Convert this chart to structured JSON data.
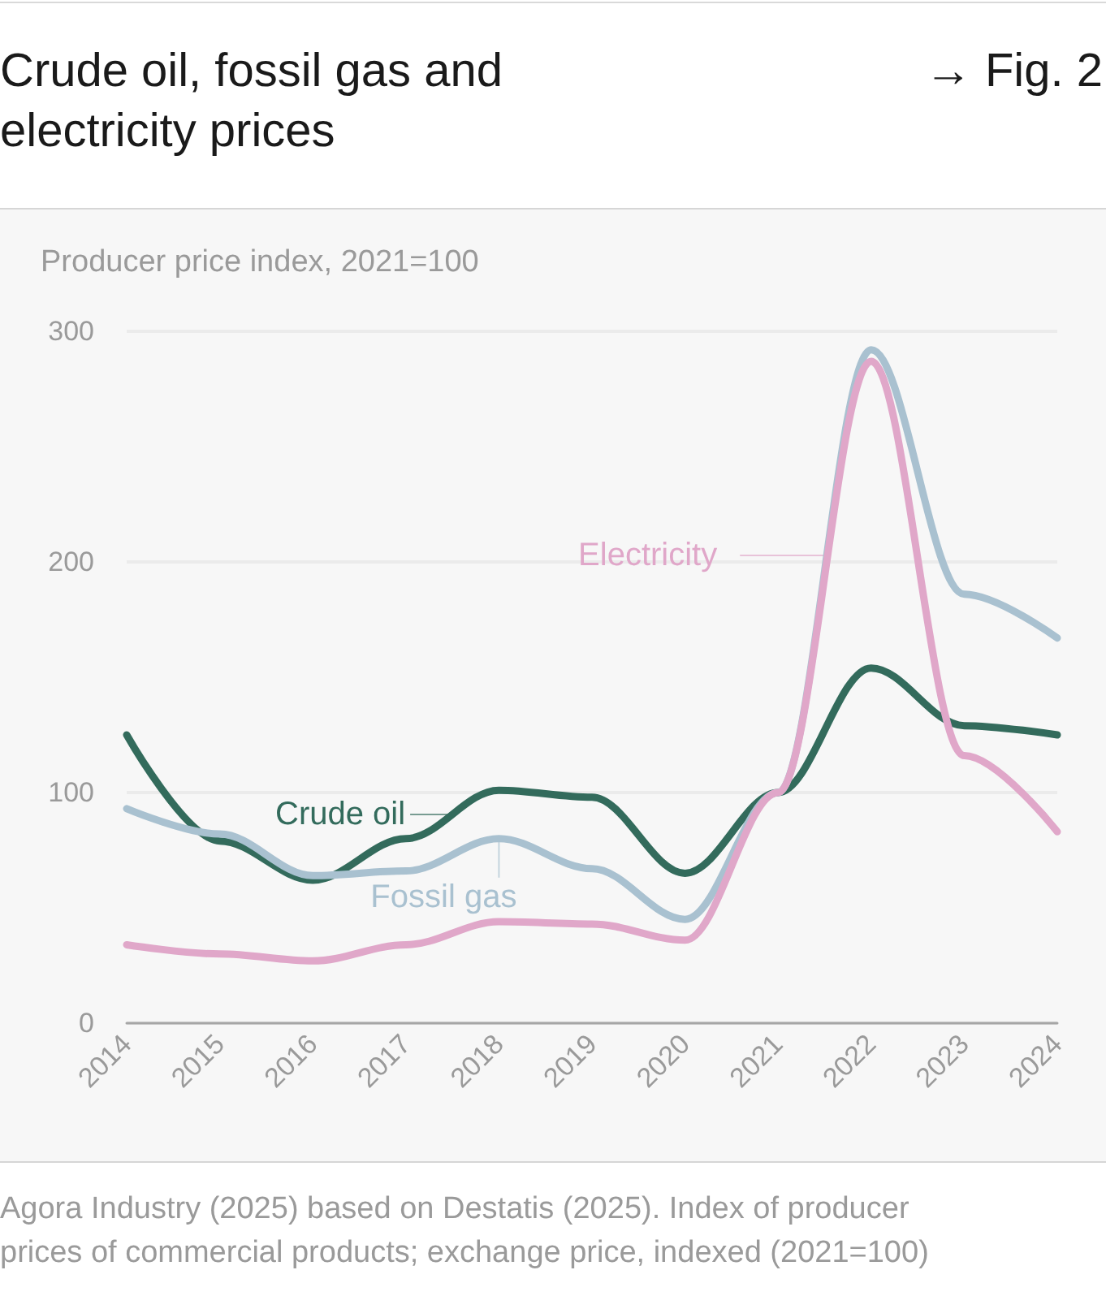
{
  "chart_data": {
    "type": "line",
    "title": "Crude oil, fossil gas and electricity prices",
    "ylabel": "Producer price index, 2021=100",
    "categories": [
      "2014",
      "2015",
      "2016",
      "2017",
      "2018",
      "2019",
      "2020",
      "2021",
      "2022",
      "2023",
      "2024"
    ],
    "series": [
      {
        "name": "Crude oil",
        "color": "#336b5c",
        "values": [
          125,
          79,
          62,
          80,
          101,
          98,
          65,
          100,
          154,
          129,
          125
        ]
      },
      {
        "name": "Fossil gas",
        "color": "#a9c1d0",
        "values": [
          93,
          82,
          64,
          66,
          80,
          67,
          45,
          100,
          292,
          186,
          167
        ]
      },
      {
        "name": "Electricity",
        "color": "#e0a7c9",
        "values": [
          34,
          30,
          27,
          34,
          44,
          43,
          36,
          100,
          287,
          116,
          83
        ]
      }
    ],
    "ylim": [
      0,
      300
    ],
    "yticks": [
      0,
      100,
      200,
      300
    ],
    "grid": "y",
    "marker": "none",
    "line_style": "solid",
    "annotations": [
      "→ Fig. 2",
      "Agora Industry (2025) based on Destatis (2025). Index of producer prices of commercial products; exchange price, indexed (2021=100)"
    ]
  }
}
